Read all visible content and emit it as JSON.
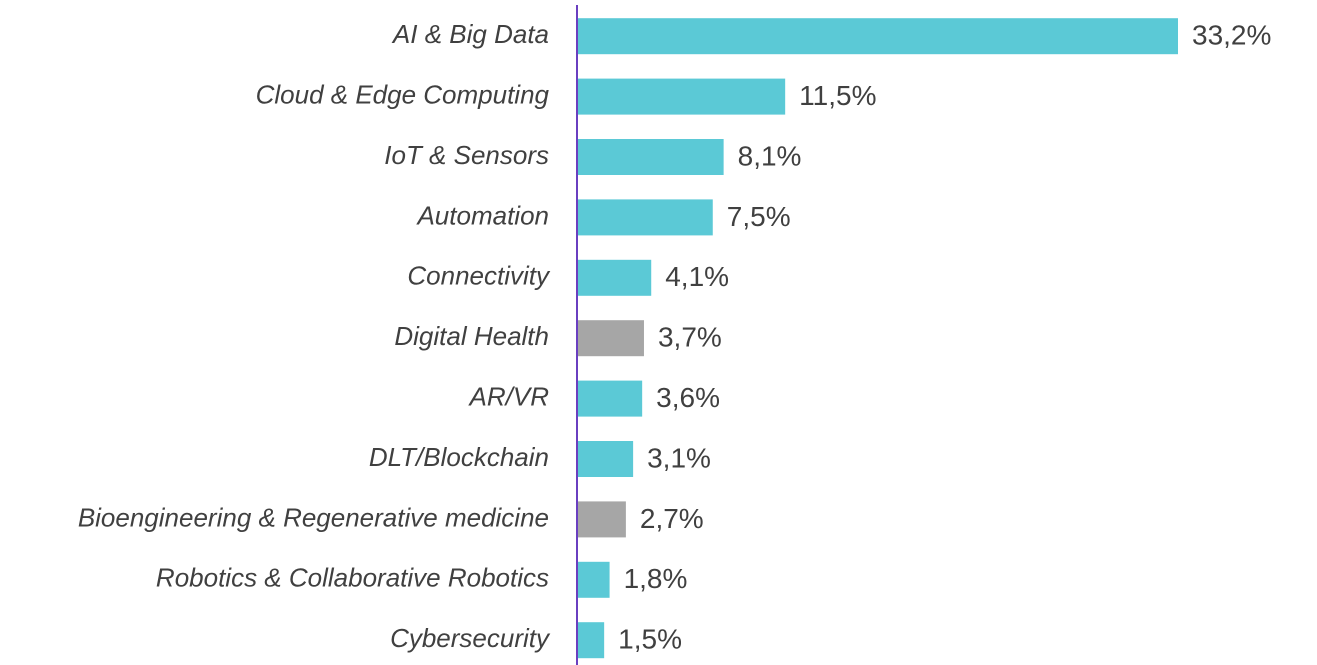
{
  "chart_data": {
    "type": "hbar",
    "categories": [
      "AI & Big Data",
      "Cloud & Edge Computing",
      "IoT & Sensors",
      "Automation",
      "Connectivity",
      "Digital Health",
      "AR/VR",
      "DLT/Blockchain",
      "Bioengineering & Regenerative medicine",
      "Robotics & Collaborative Robotics",
      "Cybersecurity"
    ],
    "values": [
      33.2,
      11.5,
      8.1,
      7.5,
      4.1,
      3.7,
      3.6,
      3.1,
      2.7,
      1.8,
      1.5
    ],
    "value_labels": [
      "33,2%",
      "11,5%",
      "8,1%",
      "7,5%",
      "4,1%",
      "3,7%",
      "3,6%",
      "3,1%",
      "2,7%",
      "1,8%",
      "1,5%"
    ],
    "colors": [
      "#5bc9d6",
      "#5bc9d6",
      "#5bc9d6",
      "#5bc9d6",
      "#5bc9d6",
      "#a6a6a6",
      "#5bc9d6",
      "#5bc9d6",
      "#a6a6a6",
      "#5bc9d6",
      "#5bc9d6"
    ],
    "axis_color": "#6a3fc0"
  }
}
